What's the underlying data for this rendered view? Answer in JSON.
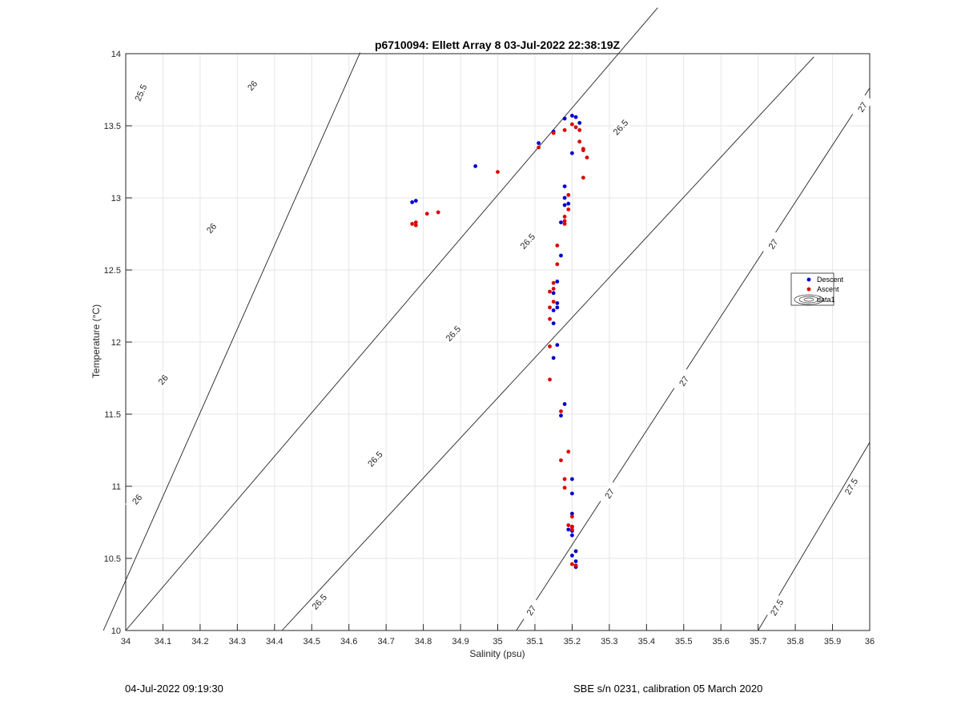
{
  "chart_data": {
    "type": "scatter",
    "title": "p6710094: Ellett Array 8 03-Jul-2022 22:38:19Z",
    "xlabel": "Salinity (psu)",
    "ylabel": "Temperature (°C)",
    "xlim": [
      34,
      36
    ],
    "ylim": [
      10,
      14
    ],
    "x_ticks": [
      34,
      34.1,
      34.2,
      34.3,
      34.4,
      34.5,
      34.6,
      34.7,
      34.8,
      34.9,
      35,
      35.1,
      35.2,
      35.3,
      35.4,
      35.5,
      35.6,
      35.7,
      35.8,
      35.9,
      36
    ],
    "y_ticks": [
      10,
      10.5,
      11,
      11.5,
      12,
      12.5,
      13,
      13.5,
      14
    ],
    "grid": true,
    "legend_position": "right",
    "legend": [
      "Descent",
      "Ascent",
      "data1"
    ],
    "series": [
      {
        "name": "Descent",
        "color": "#0000cc",
        "points": [
          [
            35.2,
            13.57
          ],
          [
            35.21,
            13.56
          ],
          [
            35.18,
            13.55
          ],
          [
            35.22,
            13.52
          ],
          [
            35.15,
            13.46
          ],
          [
            35.11,
            13.38
          ],
          [
            35.2,
            13.31
          ],
          [
            34.94,
            13.22
          ],
          [
            35.18,
            13.08
          ],
          [
            35.18,
            13.0
          ],
          [
            35.19,
            12.96
          ],
          [
            35.18,
            12.95
          ],
          [
            34.77,
            12.97
          ],
          [
            34.78,
            12.98
          ],
          [
            35.17,
            12.83
          ],
          [
            35.17,
            12.6
          ],
          [
            35.16,
            12.42
          ],
          [
            35.15,
            12.34
          ],
          [
            35.16,
            12.27
          ],
          [
            35.16,
            12.24
          ],
          [
            35.15,
            12.22
          ],
          [
            35.15,
            12.13
          ],
          [
            35.16,
            11.98
          ],
          [
            35.15,
            11.89
          ],
          [
            35.18,
            11.57
          ],
          [
            35.17,
            11.49
          ],
          [
            35.2,
            11.05
          ],
          [
            35.2,
            10.95
          ],
          [
            35.2,
            10.81
          ],
          [
            35.2,
            10.72
          ],
          [
            35.19,
            10.7
          ],
          [
            35.2,
            10.69
          ],
          [
            35.2,
            10.66
          ],
          [
            35.21,
            10.55
          ],
          [
            35.2,
            10.52
          ],
          [
            35.21,
            10.48
          ],
          [
            35.21,
            10.45
          ],
          [
            35.21,
            10.44
          ]
        ]
      },
      {
        "name": "Ascent",
        "color": "#dd0000",
        "points": [
          [
            35.2,
            13.51
          ],
          [
            35.21,
            13.49
          ],
          [
            35.22,
            13.47
          ],
          [
            35.18,
            13.47
          ],
          [
            35.15,
            13.45
          ],
          [
            35.22,
            13.39
          ],
          [
            35.23,
            13.34
          ],
          [
            35.23,
            13.33
          ],
          [
            35.11,
            13.35
          ],
          [
            35.24,
            13.28
          ],
          [
            35.0,
            13.18
          ],
          [
            35.23,
            13.14
          ],
          [
            35.19,
            13.02
          ],
          [
            35.19,
            12.92
          ],
          [
            35.18,
            12.87
          ],
          [
            35.18,
            12.84
          ],
          [
            35.18,
            12.82
          ],
          [
            34.84,
            12.9
          ],
          [
            34.81,
            12.89
          ],
          [
            34.78,
            12.83
          ],
          [
            34.77,
            12.82
          ],
          [
            34.78,
            12.81
          ],
          [
            35.16,
            12.67
          ],
          [
            35.16,
            12.54
          ],
          [
            35.15,
            12.41
          ],
          [
            35.15,
            12.37
          ],
          [
            35.14,
            12.35
          ],
          [
            35.15,
            12.28
          ],
          [
            35.14,
            12.24
          ],
          [
            35.14,
            12.16
          ],
          [
            35.14,
            11.97
          ],
          [
            35.14,
            11.74
          ],
          [
            35.17,
            11.52
          ],
          [
            35.19,
            11.24
          ],
          [
            35.17,
            11.18
          ],
          [
            35.18,
            11.05
          ],
          [
            35.18,
            10.99
          ],
          [
            35.2,
            10.79
          ],
          [
            35.19,
            10.73
          ],
          [
            35.2,
            10.72
          ],
          [
            35.2,
            10.7
          ],
          [
            35.2,
            10.46
          ],
          [
            35.21,
            10.45
          ]
        ]
      }
    ],
    "contours": [
      {
        "label": "25.5",
        "x0": 33.94,
        "x1": 34.63,
        "slope": 5.808,
        "labels_at": [
          [
            34.04,
            13.73
          ]
        ]
      },
      {
        "label": "26",
        "x0": 34.0,
        "x1": 35.43,
        "slope": 3.02,
        "labels_at": [
          [
            34.34,
            13.78
          ],
          [
            34.23,
            12.79
          ],
          [
            34.1,
            11.74
          ],
          [
            34.03,
            10.91
          ]
        ]
      },
      {
        "label": "26.5",
        "x0": 34.42,
        "x1": 35.85,
        "slope": 2.782,
        "labels_at": [
          [
            35.33,
            13.49
          ],
          [
            35.08,
            12.7
          ],
          [
            34.88,
            12.06
          ],
          [
            34.67,
            11.19
          ],
          [
            34.52,
            10.2
          ]
        ]
      },
      {
        "label": "27",
        "x0": 35.05,
        "x1": 36.0,
        "slope": 3.96,
        "labels_at": [
          [
            35.98,
            13.63
          ],
          [
            35.74,
            12.68
          ],
          [
            35.5,
            11.73
          ],
          [
            35.3,
            10.95
          ],
          [
            35.09,
            10.14
          ]
        ]
      },
      {
        "label": "27.5",
        "x0": 35.7,
        "x1": 36.0,
        "slope": 4.35,
        "labels_at": [
          [
            35.95,
            11.0
          ],
          [
            35.75,
            10.16
          ]
        ]
      }
    ]
  },
  "footer": {
    "left": "04-Jul-2022 09:19:30",
    "right": "SBE s/n 0231, calibration 05 March 2020"
  }
}
